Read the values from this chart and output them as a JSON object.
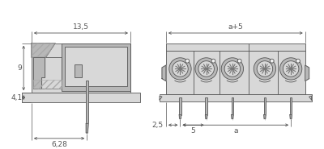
{
  "bg_color": "#ffffff",
  "lc": "#555555",
  "fill_light": "#d8d8d8",
  "fill_mid": "#b8b8b8",
  "fill_dark": "#999999",
  "fill_white": "#f0f0f0",
  "hatch_c": "#aaaaaa",
  "dim_c": "#555555",
  "font_size": 6.5,
  "dim_text_13_5": "13,5",
  "dim_text_9": "9",
  "dim_text_4_1": "4,1",
  "dim_text_6_28": "6,28",
  "dim_text_aplus5": "a+5",
  "dim_text_2_5": "2,5",
  "dim_text_5": "5",
  "dim_text_a": "a"
}
